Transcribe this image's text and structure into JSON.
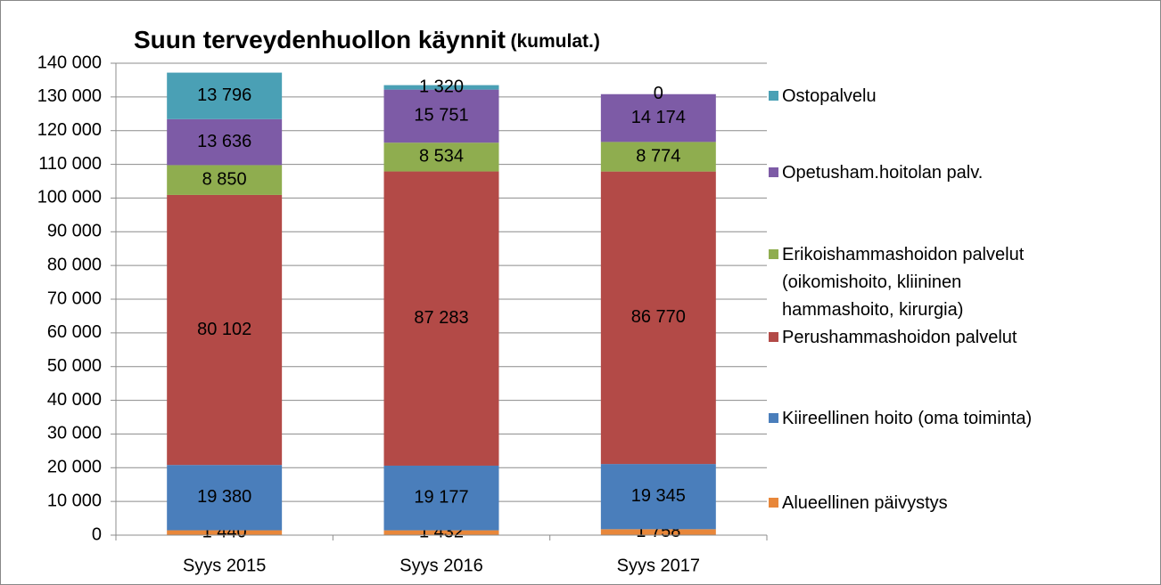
{
  "chart_data": {
    "type": "stacked_bar",
    "title": "Suun terveydenhuollon käynnit",
    "subtitle": "(kumulat.)",
    "categories": [
      "Syys 2015",
      "Syys 2016",
      "Syys 2017"
    ],
    "series": [
      {
        "name": "Alueellinen päivystys",
        "color": "#e8873a",
        "values": [
          1440,
          1432,
          1758
        ],
        "value_labels": [
          "1 440",
          "1 432",
          "1 758"
        ]
      },
      {
        "name": "Kiireellinen hoito (oma toiminta)",
        "color": "#4a7ebb",
        "values": [
          19380,
          19177,
          19345
        ],
        "value_labels": [
          "19 380",
          "19 177",
          "19 345"
        ]
      },
      {
        "name": "Perushammashoidon palvelut",
        "color": "#b34a47",
        "values": [
          80102,
          87283,
          86770
        ],
        "value_labels": [
          "80 102",
          "87 283",
          "86 770"
        ]
      },
      {
        "name": "Erikoishammashoidon palvelut (oikomishoito, kliininen hammashoito, kirurgia)",
        "color": "#8fad4f",
        "values": [
          8850,
          8534,
          8774
        ],
        "value_labels": [
          "8 850",
          "8 534",
          "8 774"
        ]
      },
      {
        "name": "Opetusham.hoitolan palv.",
        "color": "#7d5ba6",
        "values": [
          13636,
          15751,
          14174
        ],
        "value_labels": [
          "13 636",
          "15 751",
          "14 174"
        ]
      },
      {
        "name": "Ostopalvelu",
        "color": "#4aa0b5",
        "values": [
          13796,
          1320,
          0
        ],
        "value_labels": [
          "13 796",
          "1 320",
          "0"
        ]
      }
    ],
    "ylim": [
      0,
      140000
    ],
    "yticks": [
      0,
      {
        "value": 10000,
        "label": "10 000"
      },
      {
        "value": 20000,
        "label": "20 000"
      },
      {
        "value": 30000,
        "label": "30 000"
      },
      {
        "value": 40000,
        "label": "40 000"
      },
      {
        "value": 50000,
        "label": "50 000"
      },
      {
        "value": 60000,
        "label": "60 000"
      },
      {
        "value": 70000,
        "label": "70 000"
      },
      {
        "value": 80000,
        "label": "80 000"
      },
      {
        "value": 90000,
        "label": "90 000"
      },
      {
        "value": 100000,
        "label": "100 000"
      },
      {
        "value": 110000,
        "label": "110 000"
      },
      {
        "value": 120000,
        "label": "120 000"
      },
      {
        "value": 130000,
        "label": "130 000"
      },
      {
        "value": 140000,
        "label": "140 000"
      }
    ],
    "grid": true,
    "legend": "right"
  }
}
